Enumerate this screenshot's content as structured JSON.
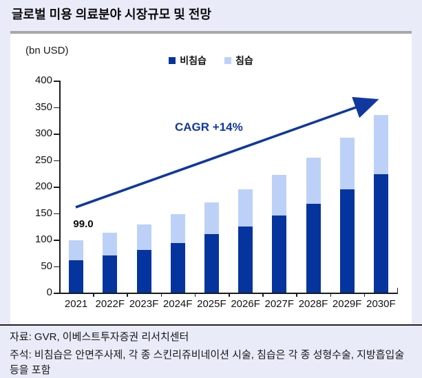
{
  "title": "글로벌 미용 의료분야 시장규모 및 전망",
  "chart_data": {
    "type": "bar",
    "stacked": true,
    "unit_label": "(bn USD)",
    "categories": [
      "2021",
      "2022F",
      "2023F",
      "2024F",
      "2025F",
      "2026F",
      "2027F",
      "2028F",
      "2029F",
      "2030F"
    ],
    "series": [
      {
        "name": "비침습",
        "color": "#05349e",
        "values": [
          61,
          70,
          81,
          93,
          110,
          125,
          145,
          167,
          195,
          224
        ]
      },
      {
        "name": "침습",
        "color": "#bdd1f8",
        "values": [
          38,
          43,
          48,
          55,
          60,
          70,
          77,
          88,
          97,
          111
        ]
      }
    ],
    "first_bar_label": "99.0",
    "annotation": {
      "text": "CAGR +14%",
      "color": "#10389f"
    },
    "ylim": [
      0,
      400
    ],
    "yticks": [
      0,
      50,
      100,
      150,
      200,
      250,
      300,
      350,
      400
    ],
    "legend_position": "top-center",
    "grid": false
  },
  "footer": {
    "source": "자료: GVR, 이베스트투자증권 리서치센터",
    "note": "주석: 비침습은 안면주사제, 각 종 스킨리쥬비네이션 시술, 침습은 각 종 성형수술, 지방흡입술 등을 포함"
  }
}
